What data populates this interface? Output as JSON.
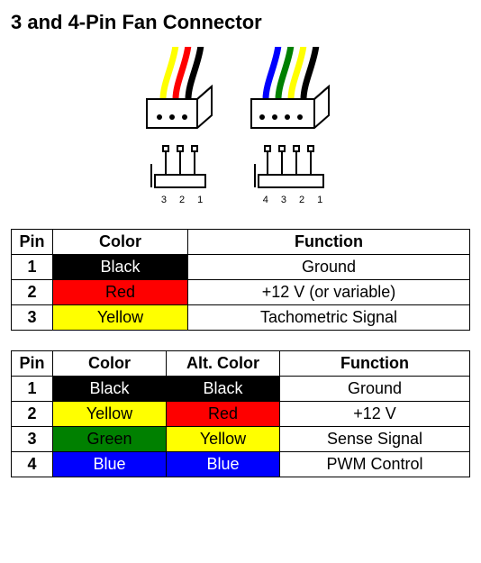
{
  "title": "3 and 4-Pin Fan Connector",
  "colors": {
    "black": "#000000",
    "red": "#fe0000",
    "yellow": "#ffff00",
    "green": "#008000",
    "blue": "#0000fe",
    "white_text": "#ffffff",
    "black_text": "#000000",
    "border": "#000000",
    "background": "#ffffff"
  },
  "diagram": {
    "plug_body": "#ffffff",
    "plug_outline": "#000000",
    "connector3": {
      "wires": [
        "#ffff00",
        "#fe0000",
        "#000000"
      ],
      "pin_labels": [
        "3",
        "2",
        "1"
      ]
    },
    "connector4": {
      "wires": [
        "#0000fe",
        "#008000",
        "#ffff00",
        "#000000"
      ],
      "pin_labels": [
        "4",
        "3",
        "2",
        "1"
      ]
    }
  },
  "table3": {
    "columns": [
      "Pin",
      "Color",
      "Function"
    ],
    "col_widths": [
      "46px",
      "150px",
      "auto"
    ],
    "rows": [
      {
        "pin": "1",
        "color_label": "Black",
        "color_bg": "#000000",
        "color_fg": "#ffffff",
        "function": "Ground"
      },
      {
        "pin": "2",
        "color_label": "Red",
        "color_bg": "#fe0000",
        "color_fg": "#000000",
        "function": "+12 V (or variable)"
      },
      {
        "pin": "3",
        "color_label": "Yellow",
        "color_bg": "#ffff00",
        "color_fg": "#000000",
        "function": "Tachometric Signal"
      }
    ]
  },
  "table4": {
    "columns": [
      "Pin",
      "Color",
      "Alt. Color",
      "Function"
    ],
    "col_widths": [
      "46px",
      "126px",
      "126px",
      "auto"
    ],
    "rows": [
      {
        "pin": "1",
        "color_label": "Black",
        "color_bg": "#000000",
        "color_fg": "#ffffff",
        "alt_label": "Black",
        "alt_bg": "#000000",
        "alt_fg": "#ffffff",
        "function": "Ground"
      },
      {
        "pin": "2",
        "color_label": "Yellow",
        "color_bg": "#ffff00",
        "color_fg": "#000000",
        "alt_label": "Red",
        "alt_bg": "#fe0000",
        "alt_fg": "#000000",
        "function": "+12 V"
      },
      {
        "pin": "3",
        "color_label": "Green",
        "color_bg": "#008000",
        "color_fg": "#000000",
        "alt_label": "Yellow",
        "alt_bg": "#ffff00",
        "alt_fg": "#000000",
        "function": "Sense Signal"
      },
      {
        "pin": "4",
        "color_label": "Blue",
        "color_bg": "#0000fe",
        "color_fg": "#ffffff",
        "alt_label": "Blue",
        "alt_bg": "#0000fe",
        "alt_fg": "#ffffff",
        "function": "PWM Control"
      }
    ]
  }
}
